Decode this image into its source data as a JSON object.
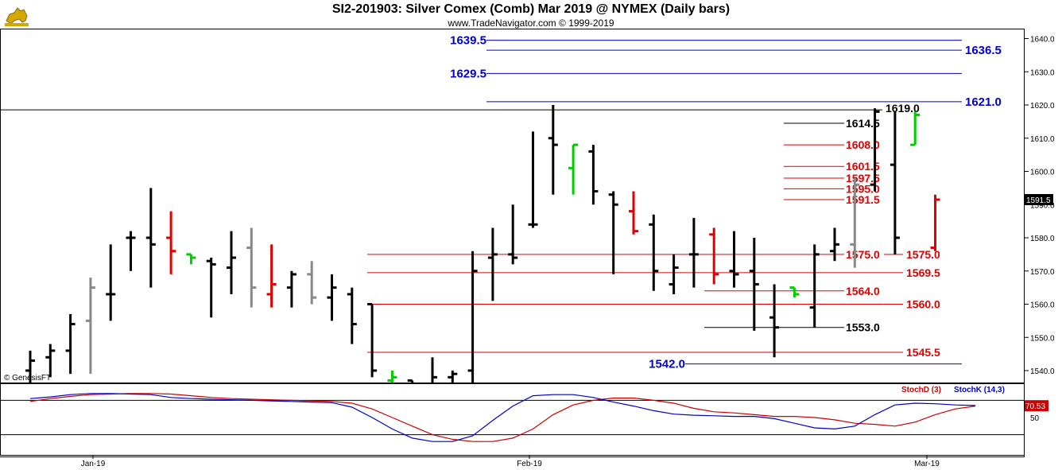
{
  "header": {
    "title": "SI2-201903:  Silver Comex (Comb) Mar 2019 @ NYMEX  (Daily bars)",
    "subtitle": "www.TradeNavigator.com © 1999-2019",
    "watermark": "© GenesisFT"
  },
  "colors": {
    "bar_down": "#000000",
    "bar_up_red": "#e00000",
    "bar_green": "#00cc00",
    "bar_gray": "#888888",
    "level_blue": "#0000cc",
    "level_red": "#e00000",
    "level_black": "#000000",
    "stoch_d": "#cc0000",
    "stoch_k": "#0000cc"
  },
  "chart_data": [
    {
      "type": "ohlc",
      "yaxis": {
        "min": 1535,
        "max": 1643,
        "ticks": [
          1540.0,
          1550.0,
          1560.0,
          1570.0,
          1580.0,
          1590.0,
          1600.0,
          1610.0,
          1620.0,
          1630.0,
          1640.0
        ]
      },
      "xaxis": {
        "labels": [
          "Jan-19",
          "Feb-19",
          "Mar-19"
        ]
      },
      "current_price": "1591.5",
      "bars": [
        {
          "d": "12-31",
          "o": 1540,
          "h": 1546,
          "l": 1532,
          "c": 1543,
          "col": "bar_down"
        },
        {
          "d": "01-02",
          "o": 1544,
          "h": 1548,
          "l": 1538,
          "c": 1546,
          "col": "bar_down"
        },
        {
          "d": "01-03",
          "o": 1546,
          "h": 1557,
          "l": 1539,
          "c": 1554,
          "col": "bar_down"
        },
        {
          "d": "01-04",
          "o": 1555,
          "h": 1568,
          "l": 1539,
          "c": 1565,
          "col": "bar_gray"
        },
        {
          "d": "01-07",
          "o": 1563,
          "h": 1578,
          "l": 1555,
          "c": 1563,
          "col": "bar_down"
        },
        {
          "d": "01-08",
          "o": 1580,
          "h": 1582,
          "l": 1570,
          "c": 1580,
          "col": "bar_down"
        },
        {
          "d": "01-09",
          "o": 1580,
          "h": 1595,
          "l": 1565,
          "c": 1578,
          "col": "bar_down"
        },
        {
          "d": "01-10",
          "o": 1580,
          "h": 1588,
          "l": 1569,
          "c": 1576,
          "col": "bar_up_red"
        },
        {
          "d": "01-11",
          "o": 1575,
          "h": 1575,
          "l": 1572,
          "c": 1574,
          "col": "bar_green"
        },
        {
          "d": "01-14",
          "o": 1573,
          "h": 1574,
          "l": 1556,
          "c": 1572,
          "col": "bar_down"
        },
        {
          "d": "01-15",
          "o": 1571,
          "h": 1582,
          "l": 1563,
          "c": 1574,
          "col": "bar_down"
        },
        {
          "d": "01-16",
          "o": 1577,
          "h": 1583,
          "l": 1559,
          "c": 1565,
          "col": "bar_gray"
        },
        {
          "d": "01-17",
          "o": 1563,
          "h": 1578,
          "l": 1559,
          "c": 1566,
          "col": "bar_up_red"
        },
        {
          "d": "01-18",
          "o": 1565,
          "h": 1570,
          "l": 1559,
          "c": 1569,
          "col": "bar_down"
        },
        {
          "d": "01-21",
          "o": 1569,
          "h": 1573,
          "l": 1560,
          "c": 1562,
          "col": "bar_gray"
        },
        {
          "d": "01-22",
          "o": 1562,
          "h": 1569,
          "l": 1555,
          "c": 1565,
          "col": "bar_down"
        },
        {
          "d": "01-23",
          "o": 1563,
          "h": 1565,
          "l": 1548,
          "c": 1554,
          "col": "bar_down"
        },
        {
          "d": "01-24",
          "o": 1560,
          "h": 1560,
          "l": 1538,
          "c": 1540,
          "col": "bar_down"
        },
        {
          "d": "01-25",
          "o": 1537,
          "h": 1540,
          "l": 1536,
          "c": 1538,
          "col": "bar_green"
        },
        {
          "d": "01-28",
          "o": 1537,
          "h": 1537,
          "l": 1533,
          "c": 1535,
          "col": "bar_down"
        },
        {
          "d": "01-29",
          "o": 1536,
          "h": 1544,
          "l": 1534,
          "c": 1538,
          "col": "bar_down"
        },
        {
          "d": "01-30",
          "o": 1538,
          "h": 1540,
          "l": 1535,
          "c": 1539,
          "col": "bar_down"
        },
        {
          "d": "01-31",
          "o": 1540,
          "h": 1576,
          "l": 1530,
          "c": 1570,
          "col": "bar_down"
        },
        {
          "d": "02-01",
          "o": 1574,
          "h": 1583,
          "l": 1561,
          "c": 1575,
          "col": "bar_down"
        },
        {
          "d": "02-04",
          "o": 1575,
          "h": 1590,
          "l": 1572,
          "c": 1574,
          "col": "bar_down"
        },
        {
          "d": "02-05",
          "o": 1584,
          "h": 1612,
          "l": 1583,
          "c": 1584,
          "col": "bar_down"
        },
        {
          "d": "02-06",
          "o": 1610,
          "h": 1620,
          "l": 1593,
          "c": 1608,
          "col": "bar_down"
        },
        {
          "d": "02-07",
          "o": 1601,
          "h": 1608,
          "l": 1593,
          "c": 1608,
          "col": "bar_green"
        },
        {
          "d": "02-08",
          "o": 1606,
          "h": 1608,
          "l": 1590,
          "c": 1594,
          "col": "bar_down"
        },
        {
          "d": "02-11",
          "o": 1593,
          "h": 1594,
          "l": 1569,
          "c": 1590,
          "col": "bar_down"
        },
        {
          "d": "02-12",
          "o": 1588,
          "h": 1594,
          "l": 1581,
          "c": 1582,
          "col": "bar_up_red"
        },
        {
          "d": "02-13",
          "o": 1584,
          "h": 1587,
          "l": 1564,
          "c": 1570,
          "col": "bar_down"
        },
        {
          "d": "02-14",
          "o": 1566,
          "h": 1575,
          "l": 1563,
          "c": 1571,
          "col": "bar_down"
        },
        {
          "d": "02-15",
          "o": 1575,
          "h": 1586,
          "l": 1565,
          "c": 1575,
          "col": "bar_down"
        },
        {
          "d": "02-18",
          "o": 1581,
          "h": 1583,
          "l": 1566,
          "c": 1569,
          "col": "bar_up_red"
        },
        {
          "d": "02-19",
          "o": 1570,
          "h": 1582,
          "l": 1565,
          "c": 1569,
          "col": "bar_down"
        },
        {
          "d": "02-20",
          "o": 1570,
          "h": 1580,
          "l": 1552,
          "c": 1566,
          "col": "bar_down"
        },
        {
          "d": "02-21",
          "o": 1556,
          "h": 1566,
          "l": 1544,
          "c": 1553,
          "col": "bar_down"
        },
        {
          "d": "02-22",
          "o": 1565,
          "h": 1565,
          "l": 1562,
          "c": 1563,
          "col": "bar_green"
        },
        {
          "d": "02-25",
          "o": 1559,
          "h": 1578,
          "l": 1553,
          "c": 1575,
          "col": "bar_down"
        },
        {
          "d": "02-26",
          "o": 1576,
          "h": 1583,
          "l": 1573,
          "c": 1578,
          "col": "bar_down"
        },
        {
          "d": "02-27",
          "o": 1578,
          "h": 1598,
          "l": 1571,
          "c": 1596,
          "col": "bar_gray"
        },
        {
          "d": "02-28",
          "o": 1596,
          "h": 1619,
          "l": 1594,
          "c": 1618,
          "col": "bar_down"
        },
        {
          "d": "03-01",
          "o": 1602,
          "h": 1618,
          "l": 1575,
          "c": 1580,
          "col": "bar_down"
        },
        {
          "d": "03-04",
          "o": 1608,
          "h": 1618,
          "l": 1608,
          "c": 1617,
          "col": "bar_green"
        },
        {
          "d": "03-05",
          "o": 1577,
          "h": 1593,
          "l": 1576,
          "c": 1591.5,
          "col": "bar_up_red"
        }
      ],
      "levels": [
        {
          "label": "1639.5",
          "value": 1639.5,
          "color": "level_blue",
          "side": "left"
        },
        {
          "label": "1636.5",
          "value": 1636.5,
          "color": "level_blue",
          "side": "right"
        },
        {
          "label": "1629.5",
          "value": 1629.5,
          "color": "level_blue",
          "side": "left"
        },
        {
          "label": "1621.0",
          "value": 1621.0,
          "color": "level_blue",
          "side": "right"
        },
        {
          "label": "1619.0",
          "value": 1619.0,
          "color": "level_black",
          "side": "mid"
        },
        {
          "label": "1614.5",
          "value": 1614.5,
          "color": "level_black",
          "side": "mid"
        },
        {
          "label": "1608.0",
          "value": 1608.0,
          "color": "level_red",
          "side": "mid"
        },
        {
          "label": "1601.5",
          "value": 1601.5,
          "color": "level_red",
          "side": "mid"
        },
        {
          "label": "1597.5",
          "value": 1597.5,
          "color": "level_red",
          "side": "mid"
        },
        {
          "label": "1595.0",
          "value": 1595.0,
          "color": "level_red",
          "side": "mid"
        },
        {
          "label": "1591.5",
          "value": 1591.5,
          "color": "level_red",
          "side": "mid"
        },
        {
          "label": "1575.0",
          "value": 1575.0,
          "color": "level_red",
          "side": "mid"
        },
        {
          "label": "1575.0",
          "value": 1575.0,
          "color": "level_red",
          "side": "right"
        },
        {
          "label": "1569.5",
          "value": 1569.5,
          "color": "level_red",
          "side": "right"
        },
        {
          "label": "1564.0",
          "value": 1564.0,
          "color": "level_red",
          "side": "mid"
        },
        {
          "label": "1560.0",
          "value": 1560.0,
          "color": "level_red",
          "side": "right"
        },
        {
          "label": "1553.0",
          "value": 1553.0,
          "color": "level_black",
          "side": "mid"
        },
        {
          "label": "1545.5",
          "value": 1545.5,
          "color": "level_red",
          "side": "right"
        },
        {
          "label": "1542.0",
          "value": 1542.0,
          "color": "level_blue",
          "side": "left"
        }
      ]
    },
    {
      "type": "line",
      "title_d": "StochD (3)",
      "title_k": "StochK (14,3)",
      "yaxis": {
        "min": 0,
        "max": 100,
        "tick": "50"
      },
      "last_value": "70.53",
      "series": [
        {
          "name": "StochD (3)",
          "color": "stoch_d",
          "values": [
            78,
            83,
            87,
            90,
            91,
            92,
            92,
            91,
            88,
            85,
            83,
            82,
            81,
            80,
            79,
            78,
            75,
            65,
            50,
            35,
            20,
            12,
            8,
            8,
            14,
            30,
            55,
            72,
            80,
            84,
            84,
            80,
            75,
            66,
            60,
            58,
            55,
            52,
            52,
            50,
            46,
            40,
            38,
            35,
            42,
            55,
            65,
            70
          ]
        },
        {
          "name": "StochK (14,3)",
          "color": "stoch_k",
          "values": [
            83,
            86,
            90,
            92,
            92,
            91,
            90,
            85,
            83,
            82,
            81,
            80,
            79,
            78,
            77,
            76,
            68,
            50,
            30,
            14,
            8,
            8,
            18,
            45,
            70,
            88,
            90,
            90,
            85,
            77,
            70,
            62,
            56,
            54,
            53,
            52,
            52,
            48,
            40,
            32,
            30,
            35,
            55,
            72,
            75,
            74,
            72,
            71
          ]
        }
      ]
    }
  ]
}
